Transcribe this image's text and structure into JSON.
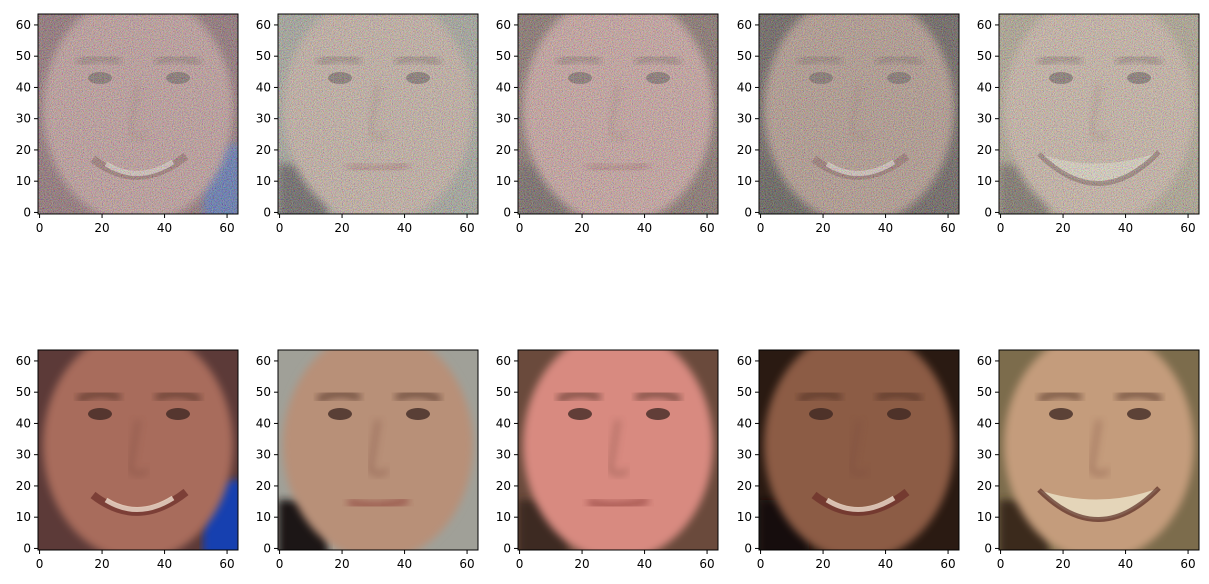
{
  "figure": {
    "description_rows": [
      "noisy",
      "clean"
    ],
    "axis": {
      "x_ticks": [
        0,
        20,
        40,
        60
      ],
      "y_ticks": [
        0,
        10,
        20,
        30,
        40,
        50,
        60
      ],
      "xlim": [
        -0.5,
        63.5
      ],
      "ylim": [
        63.5,
        -0.5
      ]
    },
    "colors": {
      "axes_edge": "#000000",
      "background": "#ffffff"
    },
    "panels": [
      {
        "row": 0,
        "col": 0,
        "variant": "noisy",
        "skin": "#b8827e",
        "bg": "#6a3a40",
        "accent": "#1a3fa0",
        "mouth": "smile"
      },
      {
        "row": 0,
        "col": 1,
        "variant": "noisy",
        "skin": "#c0a08c",
        "bg": "#8c8c7c",
        "accent": "#2a2420",
        "mouth": "neutral"
      },
      {
        "row": 0,
        "col": 2,
        "variant": "noisy",
        "skin": "#c68c84",
        "bg": "#5a3a30",
        "accent": "#3a2824",
        "mouth": "neutral"
      },
      {
        "row": 0,
        "col": 3,
        "variant": "noisy",
        "skin": "#a47c68",
        "bg": "#2a1c16",
        "accent": "#1a120e",
        "mouth": "smile"
      },
      {
        "row": 0,
        "col": 4,
        "variant": "noisy",
        "skin": "#c8a890",
        "bg": "#9c8c6c",
        "accent": "#4a3a2a",
        "mouth": "grin"
      },
      {
        "row": 1,
        "col": 0,
        "variant": "clean",
        "skin": "#a86c5c",
        "bg": "#5c3a38",
        "accent": "#1840b0",
        "mouth": "smile"
      },
      {
        "row": 1,
        "col": 1,
        "variant": "clean",
        "skin": "#b89078",
        "bg": "#a0a098",
        "accent": "#1c1814",
        "mouth": "neutral"
      },
      {
        "row": 1,
        "col": 2,
        "variant": "clean",
        "skin": "#d88a80",
        "bg": "#6a4a3c",
        "accent": "#3c2a22",
        "mouth": "neutral"
      },
      {
        "row": 1,
        "col": 3,
        "variant": "clean",
        "skin": "#8c5c44",
        "bg": "#2a1a12",
        "accent": "#140e0a",
        "mouth": "smile"
      },
      {
        "row": 1,
        "col": 4,
        "variant": "clean",
        "skin": "#c49c7c",
        "bg": "#7c6c4c",
        "accent": "#3a2c1c",
        "mouth": "grin"
      }
    ]
  }
}
